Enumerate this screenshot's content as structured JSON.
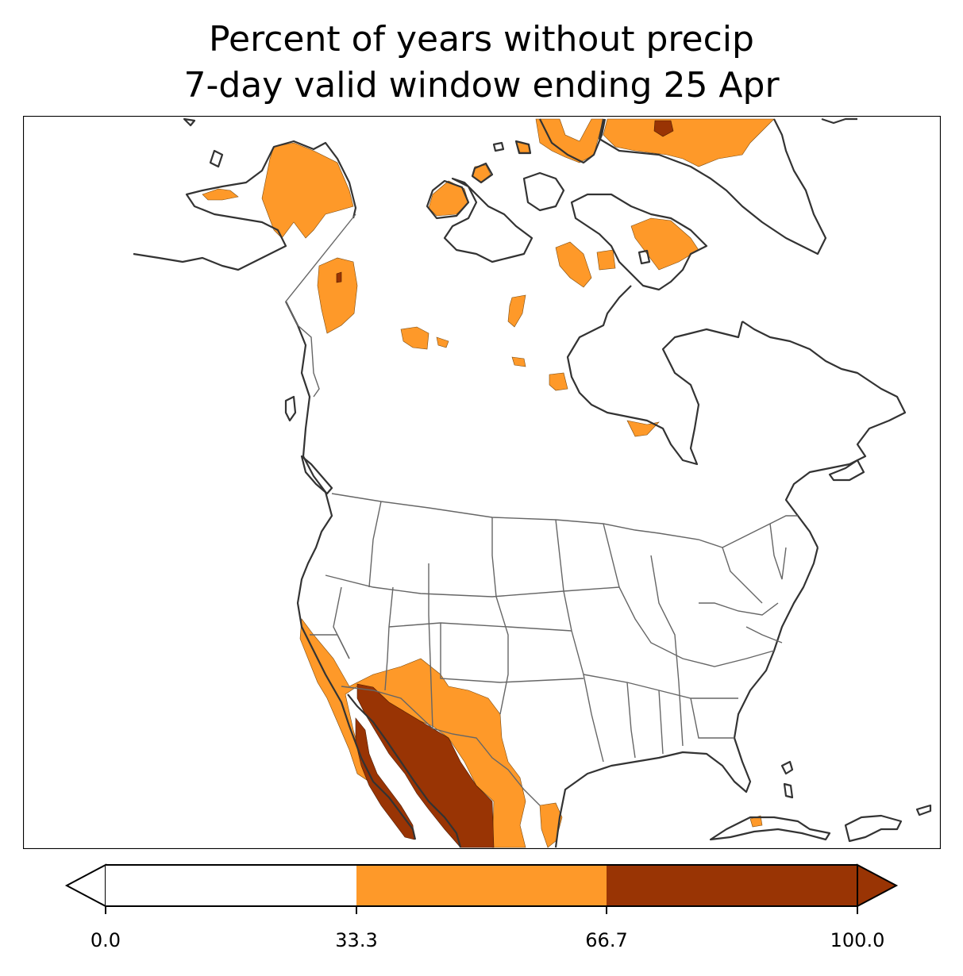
{
  "title": {
    "line1": "Percent of years without precip",
    "line2": "7-day valid window ending 25 Apr"
  },
  "colorbar": {
    "ticks": [
      "0.0",
      "33.3",
      "66.7",
      "100.0"
    ],
    "bins": [
      {
        "from": 0.0,
        "to": 33.3,
        "color": "#ffffff"
      },
      {
        "from": 33.3,
        "to": 66.7,
        "color": "#fe9929"
      },
      {
        "from": 66.7,
        "to": 100.0,
        "color": "#993404"
      }
    ],
    "extend": "both"
  },
  "colors": {
    "coast": "#333333",
    "borders": "#666666",
    "low": "#ffffff",
    "mid": "#fe9929",
    "high": "#993404"
  }
}
